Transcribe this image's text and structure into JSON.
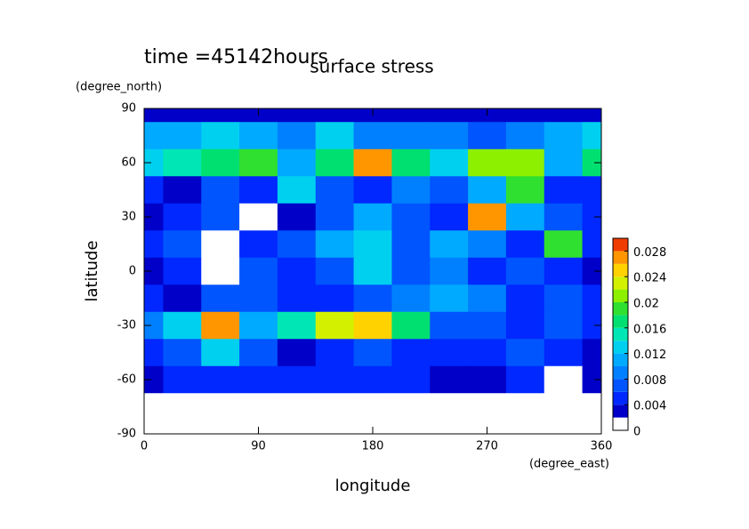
{
  "chart_data": {
    "type": "contour",
    "title": "surface stress",
    "subtitle": "time =45142hours",
    "y_units": "(degree_north)",
    "x_units": "(degree_east)",
    "xlabel": "longitude",
    "ylabel": "latitude",
    "xlim": [
      0,
      360
    ],
    "xticks": [
      0,
      90,
      180,
      270,
      360
    ],
    "ylim": [
      -90,
      90
    ],
    "yticks": [
      -90,
      -60,
      -30,
      0,
      30,
      60,
      90
    ],
    "x": [
      0,
      30,
      60,
      90,
      120,
      150,
      180,
      210,
      240,
      270,
      300,
      330,
      360
    ],
    "y": [
      90,
      75,
      60,
      45,
      30,
      15,
      0,
      -15,
      -30,
      -45,
      -60,
      -75,
      -90
    ],
    "z": [
      [
        0.003,
        0.003,
        0.003,
        0.003,
        0.003,
        0.003,
        0.003,
        0.003,
        0.003,
        0.003,
        0.003,
        0.003,
        0.003
      ],
      [
        0.01,
        0.01,
        0.012,
        0.01,
        0.008,
        0.012,
        0.008,
        0.008,
        0.008,
        0.006,
        0.008,
        0.01,
        0.012
      ],
      [
        0.012,
        0.014,
        0.016,
        0.018,
        0.01,
        0.016,
        0.026,
        0.016,
        0.012,
        0.02,
        0.02,
        0.01,
        0.016
      ],
      [
        0.004,
        0.002,
        0.006,
        0.004,
        0.012,
        0.006,
        0.004,
        0.008,
        0.006,
        0.01,
        0.018,
        0.004,
        0.004
      ],
      [
        0.002,
        0.004,
        0.006,
        0,
        0.002,
        0.006,
        0.01,
        0.006,
        0.004,
        0.026,
        0.01,
        0.006,
        0.004
      ],
      [
        0.004,
        0.006,
        0,
        0.004,
        0.006,
        0.01,
        0.012,
        0.006,
        0.01,
        0.008,
        0.004,
        0.018,
        0.004
      ],
      [
        0.002,
        0.004,
        0,
        0.006,
        0.004,
        0.006,
        0.012,
        0.006,
        0.008,
        0.004,
        0.006,
        0.004,
        0.002
      ],
      [
        0.004,
        0.002,
        0.006,
        0.006,
        0.004,
        0.004,
        0.006,
        0.008,
        0.01,
        0.008,
        0.004,
        0.006,
        0.004
      ],
      [
        0.008,
        0.012,
        0.026,
        0.01,
        0.014,
        0.022,
        0.024,
        0.016,
        0.006,
        0.006,
        0.004,
        0.006,
        0.004
      ],
      [
        0.004,
        0.006,
        0.012,
        0.006,
        0.002,
        0.004,
        0.006,
        0.004,
        0.004,
        0.004,
        0.006,
        0.004,
        0.002
      ],
      [
        0.002,
        0.004,
        0.004,
        0.004,
        0.004,
        0.004,
        0.004,
        0.004,
        0.002,
        0.002,
        0.004,
        0,
        0.002
      ],
      [
        0,
        0,
        0,
        0,
        0,
        0,
        0,
        0,
        0,
        0,
        0,
        0,
        0
      ],
      [
        0,
        0,
        0,
        0,
        0,
        0,
        0,
        0,
        0,
        0,
        0,
        0,
        0
      ]
    ],
    "levels": [
      0,
      0.002,
      0.004,
      0.006,
      0.008,
      0.01,
      0.012,
      0.014,
      0.016,
      0.018,
      0.02,
      0.022,
      0.024,
      0.026,
      0.028,
      0.03
    ],
    "colors": [
      "#ffffff",
      "#0000c8",
      "#0028ff",
      "#0055ff",
      "#0080ff",
      "#00aaff",
      "#00d0f0",
      "#00e6b4",
      "#00e070",
      "#30e030",
      "#8cf000",
      "#d2f000",
      "#ffd200",
      "#ff9600",
      "#f03c00"
    ],
    "colorbar_lim": [
      0,
      0.03
    ],
    "colorbar_ticks": [
      0,
      0.004,
      0.008,
      0.012,
      0.016,
      0.02,
      0.024,
      0.028
    ]
  }
}
